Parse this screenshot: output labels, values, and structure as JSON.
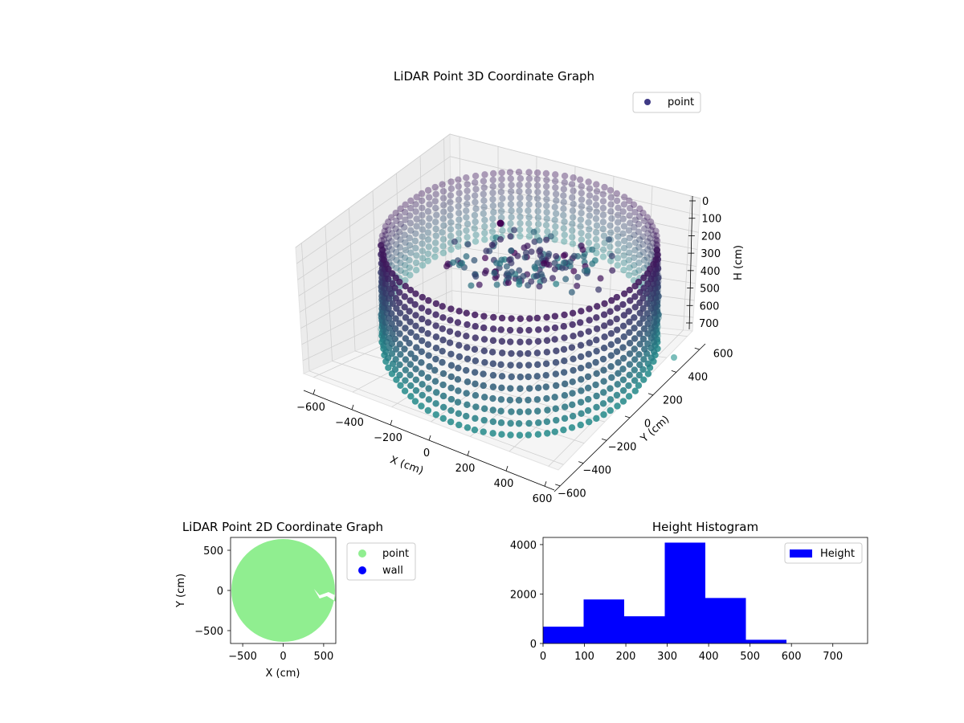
{
  "colors": {
    "point_dark": "#440154",
    "point_mid": "#3b528b",
    "point_teal": "#21918c",
    "legend_point_3d": "#3f3a85",
    "point_2d": "#90ee90",
    "wall": "#0000ff",
    "hist_bar": "#0000ff",
    "pane_grey": "#f2f2f2",
    "grid": "#d0d0d0"
  },
  "chart_data": [
    {
      "type": "scatter",
      "projection": "3d",
      "title": "LiDAR Point 3D Coordinate Graph",
      "xlabel": "X (cm)",
      "ylabel": "Y (cm)",
      "zlabel": "H (cm)",
      "x_ticks": [
        "−600",
        "−400",
        "−200",
        "0",
        "200",
        "400",
        "600"
      ],
      "y_ticks": [
        "−600",
        "−400",
        "−200",
        "0",
        "200",
        "400",
        "600"
      ],
      "z_ticks": [
        "0",
        "100",
        "200",
        "300",
        "400",
        "500",
        "600",
        "700"
      ],
      "xlim": [
        -650,
        650
      ],
      "ylim": [
        -650,
        650
      ],
      "zlim": [
        0,
        780
      ],
      "z_inverted": true,
      "legend": [
        {
          "label": "point"
        }
      ],
      "legend_position": "top-right",
      "shape": "ring of points with cutout",
      "ring_radius": 640,
      "height_range": [
        0,
        780
      ]
    },
    {
      "type": "scatter",
      "title": "LiDAR Point 2D Coordinate Graph",
      "xlabel": "X (cm)",
      "ylabel": "Y (cm)",
      "x_ticks": [
        "−500",
        "0",
        "500"
      ],
      "y_ticks": [
        "500",
        "0",
        "−500"
      ],
      "xlim": [
        -650,
        650
      ],
      "ylim": [
        -660,
        660
      ],
      "legend": [
        {
          "label": "point"
        },
        {
          "label": "wall"
        }
      ],
      "legend_position": "outside right",
      "circle_center": [
        0,
        0
      ],
      "circle_radius": 640
    },
    {
      "type": "bar",
      "title": "Height Histogram",
      "bins": [
        {
          "start": 0,
          "end": 98,
          "count": 680
        },
        {
          "start": 98,
          "end": 196,
          "count": 1780
        },
        {
          "start": 196,
          "end": 294,
          "count": 1100
        },
        {
          "start": 294,
          "end": 392,
          "count": 4080
        },
        {
          "start": 392,
          "end": 490,
          "count": 1840
        },
        {
          "start": 490,
          "end": 588,
          "count": 150
        },
        {
          "start": 588,
          "end": 686,
          "count": 0
        },
        {
          "start": 686,
          "end": 784,
          "count": 0
        }
      ],
      "x_ticks": [
        "0",
        "100",
        "200",
        "300",
        "400",
        "500",
        "600",
        "700"
      ],
      "y_ticks": [
        "0",
        "2000",
        "4000"
      ],
      "xlim": [
        0,
        784
      ],
      "ylim": [
        0,
        4290
      ],
      "legend": [
        {
          "label": "Height"
        }
      ],
      "legend_position": "top-right"
    }
  ]
}
